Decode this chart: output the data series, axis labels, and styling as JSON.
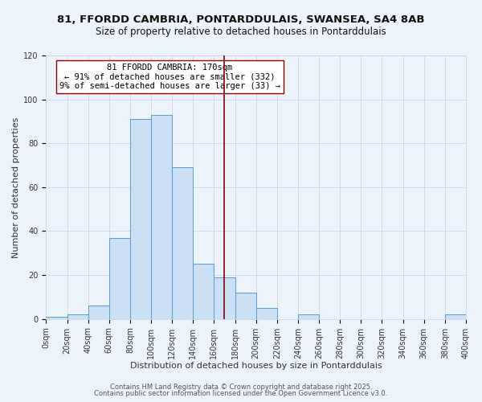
{
  "title_line1": "81, FFORDD CAMBRIA, PONTARDDULAIS, SWANSEA, SA4 8AB",
  "title_line2": "Size of property relative to detached houses in Pontarddulais",
  "xlabel": "Distribution of detached houses by size in Pontarddulais",
  "ylabel": "Number of detached properties",
  "bin_edges": [
    0,
    20,
    40,
    60,
    80,
    100,
    120,
    140,
    160,
    180,
    200,
    220,
    240,
    260,
    280,
    300,
    320,
    340,
    360,
    380,
    400
  ],
  "bar_heights": [
    1,
    2,
    6,
    37,
    91,
    93,
    69,
    25,
    19,
    12,
    5,
    0,
    2,
    0,
    0,
    0,
    0,
    0,
    0,
    2
  ],
  "bar_facecolor": "#cce0f5",
  "bar_edgecolor": "#5b9bd5",
  "vline_x": 170,
  "vline_color": "#8b0000",
  "annotation_line1": "81 FFORDD CAMBRIA: 170sqm",
  "annotation_line2": "← 91% of detached houses are smaller (332)",
  "annotation_line3": "9% of semi-detached houses are larger (33) →",
  "annotation_box_facecolor": "#ffffff",
  "annotation_box_edgecolor": "#8b0000",
  "ylim": [
    0,
    120
  ],
  "xlim": [
    0,
    400
  ],
  "grid_color": "#c8d8ea",
  "bg_color": "#edf3fb",
  "footer_line1": "Contains HM Land Registry data © Crown copyright and database right 2025.",
  "footer_line2": "Contains public sector information licensed under the Open Government Licence v3.0.",
  "title_fontsize": 9.5,
  "subtitle_fontsize": 8.5,
  "tick_label_fontsize": 7,
  "axis_label_fontsize": 8,
  "annotation_fontsize": 7.5,
  "footer_fontsize": 6
}
